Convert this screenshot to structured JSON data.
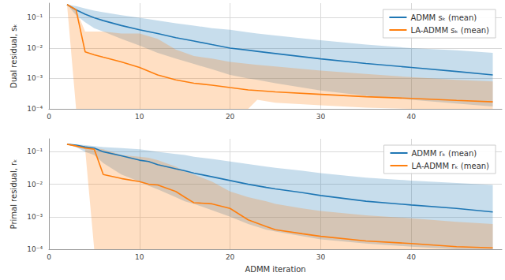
{
  "chart_data": [
    {
      "type": "line",
      "log": "y",
      "grid": true,
      "legend": "upper right",
      "y_label": "Dual residual, sₖ",
      "xlim": [
        0,
        50
      ],
      "xticks": [
        0,
        10,
        20,
        30,
        40
      ],
      "ylim": [
        0.0001,
        0.3
      ],
      "yticks": [
        {
          "value": 0.0001,
          "label": "10⁻⁴"
        },
        {
          "value": 0.001,
          "label": "10⁻³"
        },
        {
          "value": 0.01,
          "label": "10⁻²"
        },
        {
          "value": 0.1,
          "label": "10⁻¹"
        }
      ],
      "x": [
        2,
        3,
        4,
        5,
        6,
        8,
        10,
        12,
        14,
        16,
        18,
        20,
        22,
        23,
        25,
        30,
        35,
        40,
        45,
        49
      ],
      "series": [
        {
          "name": "ADMM sₖ (mean)",
          "color": "#1f77b4",
          "values": [
            0.27,
            0.18,
            0.13,
            0.1,
            0.08,
            0.055,
            0.04,
            0.03,
            0.022,
            0.017,
            0.013,
            0.01,
            0.0085,
            0.0078,
            0.0066,
            0.0044,
            0.0031,
            0.0023,
            0.0017,
            0.0013
          ],
          "upper": [
            0.27,
            0.24,
            0.2,
            0.17,
            0.15,
            0.12,
            0.1,
            0.08,
            0.065,
            0.055,
            0.045,
            0.04,
            0.033,
            0.03,
            0.026,
            0.018,
            0.013,
            0.01,
            0.0085,
            0.007
          ],
          "lower": [
            0.27,
            0.12,
            0.07,
            0.045,
            0.035,
            0.02,
            0.012,
            0.007,
            0.0045,
            0.003,
            0.002,
            0.0013,
            0.001,
            0.0009,
            0.0007,
            0.0004,
            0.00027,
            0.0002,
            0.00015,
            0.00012
          ]
        },
        {
          "name": "LA-ADMM sₖ (mean)",
          "color": "#ff7f0e",
          "values": [
            0.27,
            0.18,
            0.0075,
            0.006,
            0.005,
            0.0035,
            0.0023,
            0.0013,
            0.0009,
            0.0007,
            0.0006,
            0.0005,
            0.00042,
            0.0004,
            0.00036,
            0.0003,
            0.00025,
            0.00022,
            0.00019,
            0.00017
          ],
          "upper": [
            0.27,
            0.18,
            0.035,
            0.035,
            0.035,
            0.03,
            0.03,
            0.02,
            0.009,
            0.0055,
            0.0045,
            0.0035,
            0.003,
            0.0028,
            0.0025,
            0.0018,
            0.0014,
            0.0011,
            0.0009,
            0.0008
          ],
          "lower": [
            0.27,
            0.0001,
            0.0001,
            0.0001,
            0.0001,
            0.0001,
            0.0001,
            0.0001,
            0.0001,
            0.0001,
            0.0001,
            0.0001,
            0.0001,
            0.0002,
            0.00016,
            0.00013,
            0.00011,
            0.0001,
            0.0001,
            0.0001
          ]
        }
      ]
    },
    {
      "type": "line",
      "log": "y",
      "grid": true,
      "legend": "upper right",
      "x_label": "ADMM iteration",
      "y_label": "Primal residual, rₖ",
      "xlim": [
        0,
        50
      ],
      "xticks": [
        0,
        10,
        20,
        30,
        40
      ],
      "ylim": [
        0.0001,
        0.25
      ],
      "yticks": [
        {
          "value": 0.0001,
          "label": "10⁻⁴"
        },
        {
          "value": 0.001,
          "label": "10⁻³"
        },
        {
          "value": 0.01,
          "label": "10⁻²"
        },
        {
          "value": 0.1,
          "label": "10⁻¹"
        }
      ],
      "x": [
        2,
        3,
        4,
        5,
        6,
        8,
        10,
        11,
        12,
        14,
        15,
        16,
        18,
        20,
        22,
        24,
        25,
        28,
        30,
        35,
        40,
        45,
        49
      ],
      "series": [
        {
          "name": "ADMM rₖ (mean)",
          "color": "#1f77b4",
          "values": [
            0.17,
            0.16,
            0.14,
            0.13,
            0.1,
            0.075,
            0.055,
            0.05,
            0.04,
            0.03,
            0.026,
            0.022,
            0.017,
            0.013,
            0.01,
            0.008,
            0.0072,
            0.0055,
            0.0045,
            0.003,
            0.0023,
            0.0018,
            0.0014
          ],
          "upper": [
            0.17,
            0.17,
            0.16,
            0.15,
            0.14,
            0.13,
            0.12,
            0.11,
            0.1,
            0.085,
            0.08,
            0.07,
            0.06,
            0.05,
            0.042,
            0.035,
            0.032,
            0.026,
            0.022,
            0.016,
            0.013,
            0.011,
            0.0095
          ],
          "lower": [
            0.17,
            0.14,
            0.1,
            0.08,
            0.045,
            0.02,
            0.012,
            0.009,
            0.007,
            0.004,
            0.003,
            0.0025,
            0.0016,
            0.001,
            0.0006,
            0.0004,
            0.00035,
            0.00025,
            0.0002,
            0.00015,
            0.00012,
            0.0001,
            0.0001
          ]
        },
        {
          "name": "LA-ADMM rₖ (mean)",
          "color": "#ff7f0e",
          "values": [
            0.17,
            0.15,
            0.13,
            0.12,
            0.02,
            0.015,
            0.012,
            0.01,
            0.0095,
            0.006,
            0.004,
            0.0027,
            0.0025,
            0.0018,
            0.0008,
            0.0005,
            0.0004,
            0.0003,
            0.00025,
            0.00018,
            0.00015,
            0.00012,
            0.00011
          ],
          "upper": [
            0.17,
            0.16,
            0.15,
            0.13,
            0.12,
            0.08,
            0.07,
            0.065,
            0.055,
            0.035,
            0.025,
            0.02,
            0.012,
            0.006,
            0.004,
            0.003,
            0.0025,
            0.0018,
            0.0015,
            0.0011,
            0.0009,
            0.0007,
            0.0006
          ],
          "lower": [
            0.17,
            0.14,
            0.12,
            0.0001,
            0.0001,
            0.0001,
            0.0001,
            0.0001,
            0.0001,
            0.0001,
            0.0001,
            0.0001,
            0.0001,
            0.0001,
            0.0001,
            0.0001,
            0.0001,
            0.0001,
            0.0001,
            0.0001,
            0.0001,
            0.0001,
            0.0001
          ]
        }
      ]
    }
  ]
}
